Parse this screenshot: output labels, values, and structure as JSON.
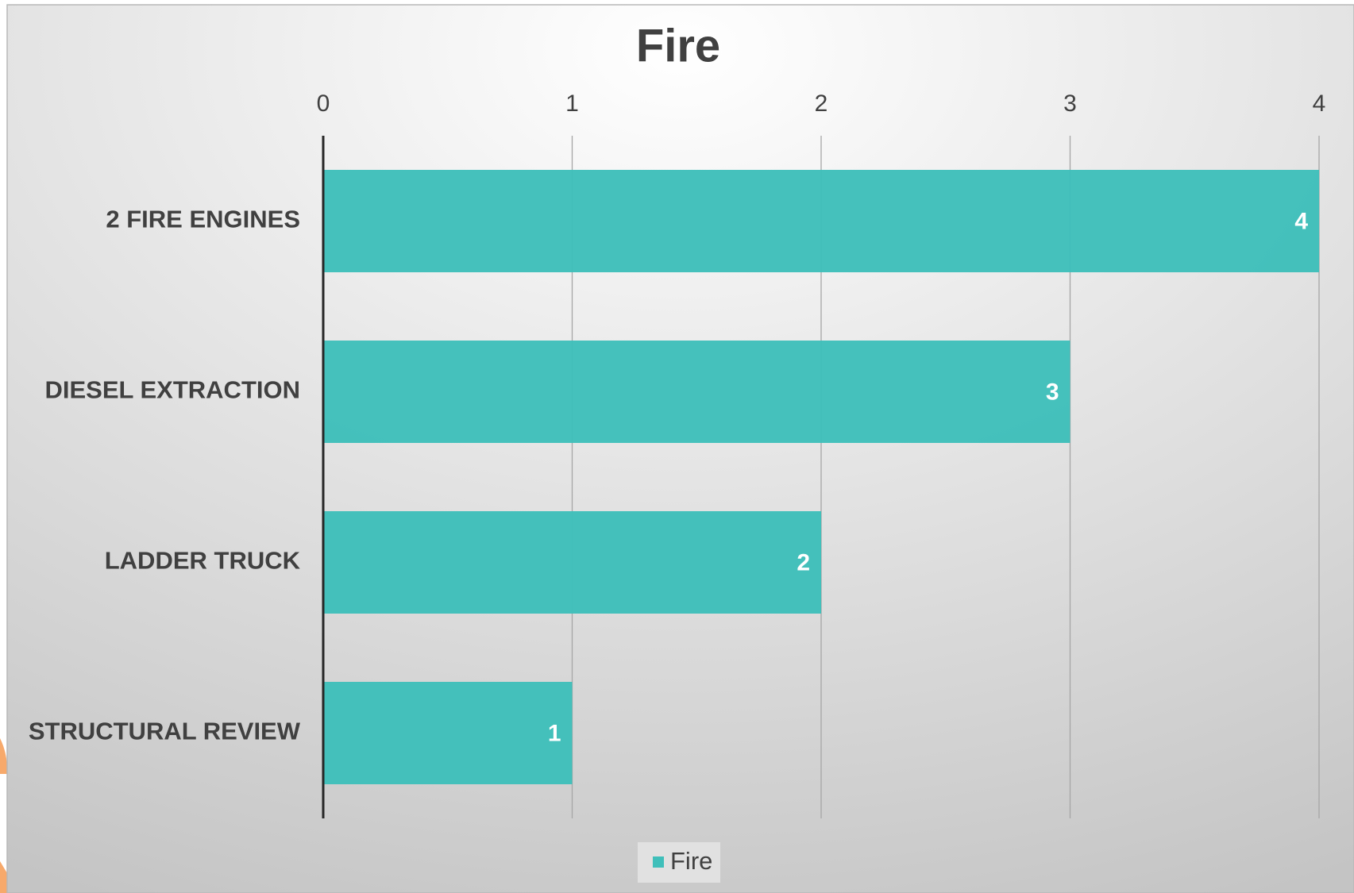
{
  "chart_data": {
    "type": "bar",
    "orientation": "horizontal",
    "title": "Fire",
    "categories": [
      "2 FIRE ENGINES",
      "DIESEL EXTRACTION",
      "LADDER TRUCK",
      "STRUCTURAL REVIEW"
    ],
    "series": [
      {
        "name": "Fire",
        "color": "#3fbfba",
        "values": [
          4,
          3,
          2,
          1
        ]
      }
    ],
    "xlim": [
      0,
      4
    ],
    "xticks": [
      0,
      1,
      2,
      3,
      4
    ],
    "grid": true,
    "legend": "bottom"
  }
}
